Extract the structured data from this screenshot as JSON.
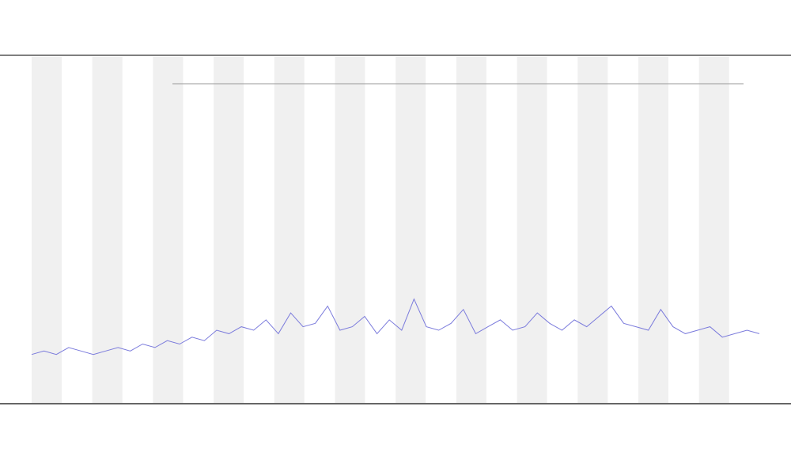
{
  "chart_data": {
    "type": "line",
    "series": [
      {
        "color": "#7b7bdc",
        "values": [
          14,
          15,
          14,
          16,
          15,
          14,
          15,
          16,
          15,
          17,
          16,
          18,
          17,
          19,
          18,
          21,
          20,
          22,
          21,
          24,
          20,
          26,
          22,
          23,
          28,
          21,
          22,
          25,
          20,
          24,
          21,
          30,
          22,
          21,
          23,
          27,
          20,
          22,
          24,
          21,
          22,
          26,
          23,
          21,
          24,
          22,
          25,
          28,
          23,
          22,
          21,
          27,
          22,
          20,
          21,
          22,
          19,
          20,
          21,
          20
        ]
      }
    ],
    "ylim": [
      0,
      100
    ]
  }
}
